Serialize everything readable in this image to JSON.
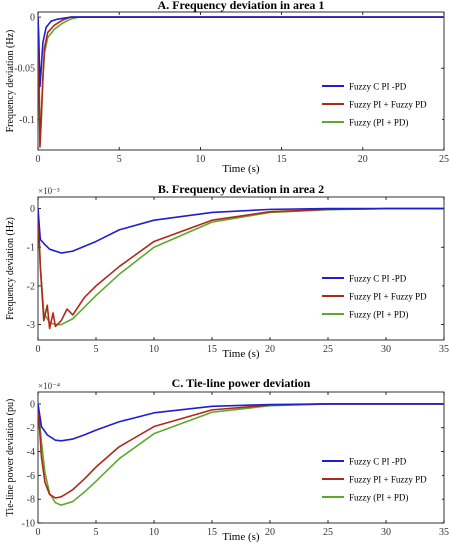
{
  "chart_data": [
    {
      "type": "line",
      "title": "A. Frequency deviation in area 1",
      "xlabel": "Time (s)",
      "ylabel": "Frequency deviation (Hz)",
      "xlim": [
        0,
        25
      ],
      "ylim": [
        -0.13,
        0.005
      ],
      "xticks": [
        0,
        5,
        10,
        15,
        20,
        25
      ],
      "yticks": [
        0,
        -0.05,
        -0.1
      ],
      "ytick_labels": [
        "0",
        "-0.05",
        "-0.1"
      ],
      "exponent_label": "",
      "legend_position": "right",
      "grid": false,
      "series": [
        {
          "name": "Fuzzy C PI -PD",
          "color": "#1f1fd0",
          "x": [
            0,
            0.05,
            0.12,
            0.2,
            0.3,
            0.5,
            0.8,
            1.2,
            2,
            3,
            5,
            10,
            25
          ],
          "y": [
            0,
            -0.02,
            -0.068,
            -0.05,
            -0.025,
            -0.01,
            -0.004,
            -0.002,
            0,
            0,
            0,
            0,
            0
          ]
        },
        {
          "name": "Fuzzy PI + Fuzzy PD",
          "color": "#b0281a",
          "x": [
            0,
            0.05,
            0.12,
            0.2,
            0.3,
            0.4,
            0.6,
            1,
            1.5,
            2,
            3,
            5,
            25
          ],
          "y": [
            0,
            -0.04,
            -0.127,
            -0.1,
            -0.06,
            -0.03,
            -0.015,
            -0.008,
            -0.003,
            0,
            0,
            0,
            0
          ]
        },
        {
          "name": "Fuzzy (PI + PD)",
          "color": "#5fa82e",
          "x": [
            0,
            0.05,
            0.12,
            0.2,
            0.3,
            0.4,
            0.6,
            1,
            1.5,
            2,
            2.5,
            3,
            5,
            25
          ],
          "y": [
            0,
            -0.04,
            -0.125,
            -0.1,
            -0.06,
            -0.035,
            -0.02,
            -0.012,
            -0.006,
            -0.002,
            0,
            0,
            0,
            0
          ]
        }
      ]
    },
    {
      "type": "line",
      "title": "B. Frequency deviation in area 2",
      "xlabel": "Time (s)",
      "ylabel": "Frequency deviation (Hz)",
      "xlim": [
        0,
        35
      ],
      "ylim": [
        -3.4,
        0.3
      ],
      "xticks": [
        0,
        5,
        10,
        15,
        20,
        25,
        30,
        35
      ],
      "yticks": [
        0,
        -1,
        -2,
        -3
      ],
      "ytick_labels": [
        "0",
        "-1",
        "-2",
        "-3"
      ],
      "exponent_label": "×10⁻³",
      "legend_position": "right",
      "grid": false,
      "series": [
        {
          "name": "Fuzzy C PI -PD",
          "color": "#1f1fd0",
          "x": [
            0,
            0.2,
            0.5,
            1,
            2,
            3,
            5,
            7,
            10,
            15,
            20,
            25,
            35
          ],
          "y": [
            0,
            -0.8,
            -0.9,
            -1.05,
            -1.15,
            -1.1,
            -0.85,
            -0.55,
            -0.3,
            -0.1,
            -0.02,
            0,
            0
          ]
        },
        {
          "name": "Fuzzy PI + Fuzzy PD",
          "color": "#b0281a",
          "x": [
            0,
            0.2,
            0.5,
            0.8,
            1,
            1.3,
            1.5,
            2,
            2.5,
            3,
            4,
            5,
            7,
            10,
            15,
            20,
            25,
            30,
            35
          ],
          "y": [
            0,
            -1.5,
            -2.9,
            -2.5,
            -3.1,
            -2.7,
            -3.05,
            -2.9,
            -2.6,
            -2.75,
            -2.3,
            -2,
            -1.5,
            -0.85,
            -0.3,
            -0.08,
            -0.02,
            0,
            0
          ]
        },
        {
          "name": "Fuzzy (PI + PD)",
          "color": "#5fa82e",
          "x": [
            0,
            0.2,
            0.5,
            1,
            1.5,
            2,
            3,
            4,
            5,
            7,
            10,
            15,
            20,
            25,
            30,
            35
          ],
          "y": [
            0,
            -1.5,
            -2.7,
            -2.95,
            -3.0,
            -3.0,
            -2.85,
            -2.55,
            -2.25,
            -1.7,
            -1.0,
            -0.35,
            -0.1,
            -0.03,
            0,
            0
          ]
        }
      ]
    },
    {
      "type": "line",
      "title": "C. Tie-line power deviation",
      "xlabel": "Time (s)",
      "ylabel": "Tie-line power deviation (pu)",
      "xlim": [
        0,
        35
      ],
      "ylim": [
        -10,
        1
      ],
      "xticks": [
        0,
        5,
        10,
        15,
        20,
        25,
        30,
        35
      ],
      "yticks": [
        0,
        -2,
        -4,
        -6,
        -8,
        -10
      ],
      "ytick_labels": [
        "0",
        "-2",
        "-4",
        "-6",
        "-8",
        "-10"
      ],
      "exponent_label": "×10⁻⁴",
      "legend_position": "right",
      "grid": false,
      "series": [
        {
          "name": "Fuzzy C PI -PD",
          "color": "#1f1fd0",
          "x": [
            0,
            0.3,
            0.8,
            1.5,
            2,
            3,
            4,
            5,
            7,
            10,
            15,
            20,
            25,
            35
          ],
          "y": [
            0,
            -1.9,
            -2.6,
            -3.05,
            -3.1,
            -2.95,
            -2.6,
            -2.2,
            -1.5,
            -0.75,
            -0.2,
            -0.05,
            0,
            0
          ]
        },
        {
          "name": "Fuzzy PI + Fuzzy PD",
          "color": "#b0281a",
          "x": [
            0,
            0.3,
            0.6,
            1,
            1.5,
            2,
            3,
            4,
            5,
            7,
            10,
            15,
            20,
            25,
            35
          ],
          "y": [
            0,
            -4.5,
            -6.6,
            -7.6,
            -7.9,
            -7.8,
            -7.2,
            -6.3,
            -5.3,
            -3.6,
            -1.9,
            -0.5,
            -0.1,
            0,
            0
          ]
        },
        {
          "name": "Fuzzy (PI + PD)",
          "color": "#5fa82e",
          "x": [
            0,
            0.3,
            0.6,
            1,
            1.5,
            2,
            3,
            4,
            5,
            7,
            10,
            15,
            20,
            25,
            35
          ],
          "y": [
            0,
            -3.2,
            -5.8,
            -7.5,
            -8.3,
            -8.5,
            -8.2,
            -7.4,
            -6.5,
            -4.6,
            -2.5,
            -0.7,
            -0.15,
            0,
            0
          ]
        }
      ]
    }
  ]
}
